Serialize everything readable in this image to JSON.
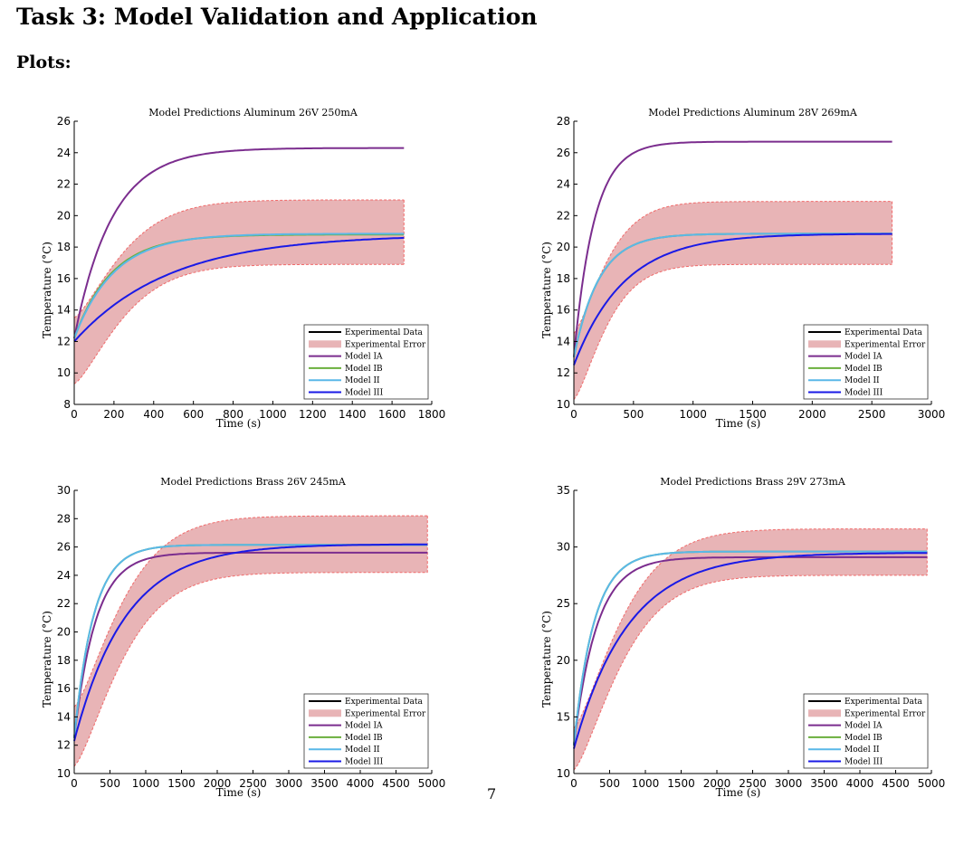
{
  "page": {
    "heading": "Task 3: Model Validation and Application",
    "subheading": "Plots:",
    "page_number": "7"
  },
  "legend_labels": [
    "Experimental Data",
    "Experimental Error",
    "Model IA",
    "Model IB",
    "Model II",
    "Model III"
  ],
  "colors": {
    "experimental_data": "#000000",
    "experimental_error_fill": "#e8b4b6",
    "experimental_error_edge": "#f06a6a",
    "model_ia": "#7b2d8e",
    "model_ib": "#6aaf3c",
    "model_ii": "#5ab8e8",
    "model_iii": "#1a1ae6"
  },
  "chart_data": [
    {
      "type": "line",
      "title": "Model Predictions Aluminum 26V 250mA",
      "xlabel": "Time (s)",
      "ylabel": "Temperature (°C)",
      "xlim": [
        0,
        1800
      ],
      "ylim": [
        8,
        26
      ],
      "xticks": [
        0,
        200,
        400,
        600,
        800,
        1000,
        1200,
        1400,
        1600,
        1800
      ],
      "yticks": [
        8,
        10,
        12,
        14,
        16,
        18,
        20,
        22,
        24,
        26
      ],
      "legend_position": "bottom-right",
      "error_band": {
        "x_end": 1660,
        "upper_start": 13.5,
        "upper_end": 21.0,
        "lower_start": 9.3,
        "lower_end": 16.9,
        "tau": 290
      },
      "series": [
        {
          "name": "Model IA",
          "color_key": "model_ia",
          "x_end": 1660,
          "y0": 12.2,
          "y_final": 24.3,
          "tau": 190
        },
        {
          "name": "Model IB",
          "color_key": "model_ib",
          "x_end": 1660,
          "y0": 12.2,
          "y_final": 18.8,
          "tau": 190
        },
        {
          "name": "Model II",
          "color_key": "model_ii",
          "x_end": 1660,
          "y0": 12.2,
          "y_final": 18.85,
          "tau": 200
        },
        {
          "name": "Model III",
          "color_key": "model_iii",
          "x_end": 1660,
          "y0": 12.0,
          "y_final": 18.8,
          "tau": 480
        }
      ]
    },
    {
      "type": "line",
      "title": "Model Predictions Aluminum 28V 269mA",
      "xlabel": "Time (s)",
      "ylabel": "Temperature (°C)",
      "xlim": [
        0,
        3000
      ],
      "ylim": [
        10,
        28
      ],
      "xticks": [
        0,
        500,
        1000,
        1500,
        2000,
        2500,
        3000
      ],
      "yticks": [
        10,
        12,
        14,
        16,
        18,
        20,
        22,
        24,
        26,
        28
      ],
      "legend_position": "bottom-right",
      "error_band": {
        "x_end": 2670,
        "upper_start": 14.5,
        "upper_end": 22.9,
        "lower_start": 10.3,
        "lower_end": 18.9,
        "tau": 330
      },
      "series": [
        {
          "name": "Model IA",
          "color_key": "model_ia",
          "x_end": 2670,
          "y0": 13.0,
          "y_final": 26.7,
          "tau": 170
        },
        {
          "name": "Model IB",
          "color_key": "model_ib",
          "x_end": 2670,
          "y0": 13.0,
          "y_final": 20.85,
          "tau": 210
        },
        {
          "name": "Model II",
          "color_key": "model_ii",
          "x_end": 2670,
          "y0": 13.0,
          "y_final": 20.85,
          "tau": 210
        },
        {
          "name": "Model III",
          "color_key": "model_iii",
          "x_end": 2670,
          "y0": 12.5,
          "y_final": 20.85,
          "tau": 420
        }
      ]
    },
    {
      "type": "line",
      "title": "Model Predictions Brass 26V 245mA",
      "xlabel": "Time (s)",
      "ylabel": "Temperature (°C)",
      "xlim": [
        0,
        5000
      ],
      "ylim": [
        10,
        30
      ],
      "xticks": [
        0,
        500,
        1000,
        1500,
        2000,
        2500,
        3000,
        3500,
        4000,
        4500,
        5000
      ],
      "yticks": [
        10,
        12,
        14,
        16,
        18,
        20,
        22,
        24,
        26,
        28,
        30
      ],
      "legend_position": "bottom-right",
      "error_band": {
        "x_end": 4940,
        "upper_start": 14.7,
        "upper_end": 28.2,
        "lower_start": 10.5,
        "lower_end": 24.2,
        "tau": 800
      },
      "series": [
        {
          "name": "Model IA",
          "color_key": "model_ia",
          "x_end": 4940,
          "y0": 12.5,
          "y_final": 25.6,
          "tau": 300
        },
        {
          "name": "Model IB",
          "color_key": "model_ib",
          "x_end": 4940,
          "y0": 12.5,
          "y_final": 26.15,
          "tau": 270
        },
        {
          "name": "Model II",
          "color_key": "model_ii",
          "x_end": 4940,
          "y0": 12.5,
          "y_final": 26.15,
          "tau": 270
        },
        {
          "name": "Model III",
          "color_key": "model_iii",
          "x_end": 4940,
          "y0": 12.3,
          "y_final": 26.2,
          "tau": 720
        }
      ]
    },
    {
      "type": "line",
      "title": "Model Predictions Brass 29V 273mA",
      "xlabel": "Time (s)",
      "ylabel": "Temperature (°C)",
      "xlim": [
        0,
        5000
      ],
      "ylim": [
        10,
        35
      ],
      "xticks": [
        0,
        500,
        1000,
        1500,
        2000,
        2500,
        3000,
        3500,
        4000,
        4500,
        5000
      ],
      "yticks": [
        10,
        15,
        20,
        25,
        30,
        35
      ],
      "legend_position": "bottom-right",
      "error_band": {
        "x_end": 4940,
        "upper_start": 14.0,
        "upper_end": 31.6,
        "lower_start": 10.3,
        "lower_end": 27.5,
        "tau": 800
      },
      "series": [
        {
          "name": "Model IA",
          "color_key": "model_ia",
          "x_end": 4940,
          "y0": 12.5,
          "y_final": 29.1,
          "tau": 320
        },
        {
          "name": "Model IB",
          "color_key": "model_ib",
          "x_end": 4940,
          "y0": 12.5,
          "y_final": 29.6,
          "tau": 280
        },
        {
          "name": "Model II",
          "color_key": "model_ii",
          "x_end": 4940,
          "y0": 12.5,
          "y_final": 29.6,
          "tau": 280
        },
        {
          "name": "Model III",
          "color_key": "model_iii",
          "x_end": 4940,
          "y0": 12.2,
          "y_final": 29.5,
          "tau": 760
        }
      ]
    }
  ]
}
